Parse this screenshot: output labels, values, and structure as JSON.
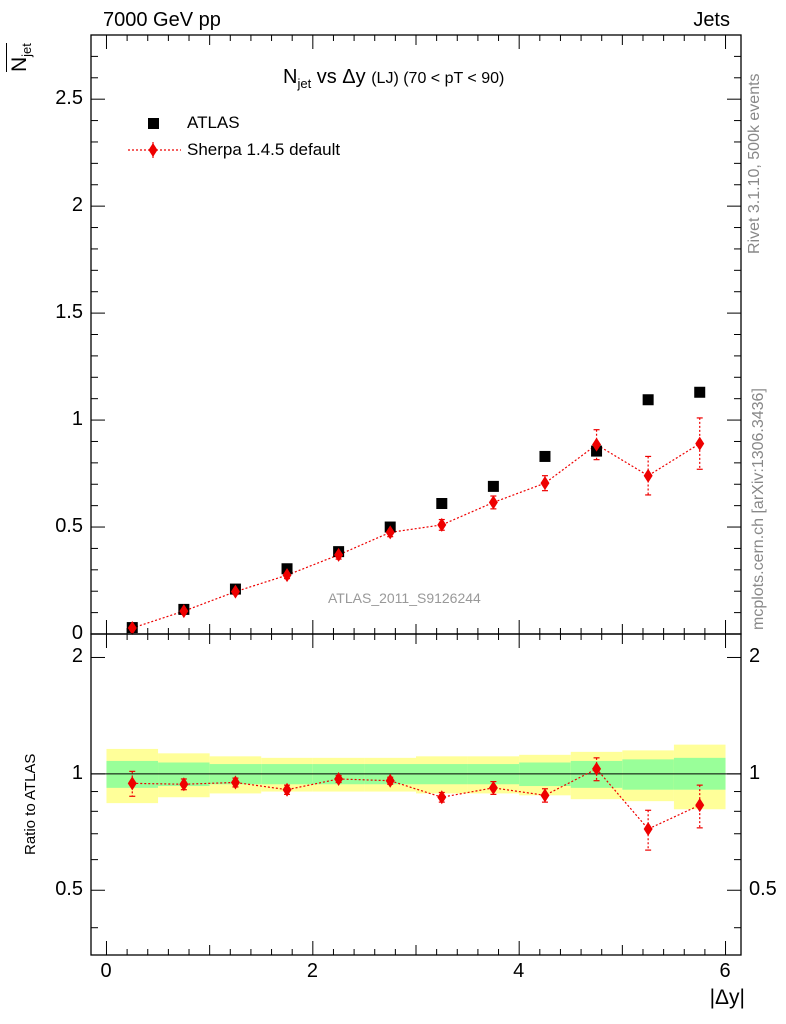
{
  "header": {
    "left": "7000 GeV pp",
    "right": "Jets"
  },
  "side_texts": {
    "rivet": "Rivet 3.1.10,  500k events",
    "mcplots": "mcplots.cern.ch [arXiv:1306.3436]"
  },
  "ylabel_main": {
    "numer": "N",
    "numer_sub": "jet",
    "denom": "N",
    "denom_sub": "jet"
  },
  "title": {
    "prefix": "N",
    "sub": "jet",
    "middle": " vs Δy ",
    "small": "(LJ) (70 < pT <  90)"
  },
  "legend": [
    {
      "label": "ATLAS",
      "marker": "square",
      "color": "#000000"
    },
    {
      "label": "Sherpa 1.4.5 default",
      "marker": "diamond",
      "color": "#ee0000"
    }
  ],
  "watermark": "ATLAS_2011_S9126244",
  "xlabel": "|Δy|",
  "ratio_ylabel": "Ratio to ATLAS",
  "colors": {
    "data": "#000000",
    "mc": "#ee0000",
    "band_inner": "#99ff99",
    "band_outer": "#ffff99"
  },
  "chart_data": [
    {
      "type": "scatter",
      "panel": "main",
      "xlim": [
        -0.15,
        6.15
      ],
      "ylim": [
        0,
        2.8
      ],
      "yticks": [
        0,
        0.5,
        1,
        1.5,
        2,
        2.5
      ],
      "ytick_labels": [
        "0",
        "0.5",
        "1",
        "1.5",
        "2",
        "2.5"
      ],
      "series": [
        {
          "name": "ATLAS",
          "x": [
            0.25,
            0.75,
            1.25,
            1.75,
            2.25,
            2.75,
            3.25,
            3.75,
            4.25,
            4.75,
            5.25,
            5.75
          ],
          "y": [
            0.03,
            0.115,
            0.21,
            0.305,
            0.385,
            0.5,
            0.61,
            0.69,
            0.83,
            0.855,
            1.095,
            1.13
          ]
        },
        {
          "name": "Sherpa 1.4.5 default",
          "x": [
            0.25,
            0.75,
            1.25,
            1.75,
            2.25,
            2.75,
            3.25,
            3.75,
            4.25,
            4.75,
            5.25,
            5.75
          ],
          "y": [
            0.028,
            0.107,
            0.198,
            0.275,
            0.37,
            0.475,
            0.51,
            0.615,
            0.705,
            0.885,
            0.74,
            0.89
          ],
          "yerr": [
            0.006,
            0.01,
            0.012,
            0.016,
            0.02,
            0.02,
            0.025,
            0.03,
            0.035,
            0.07,
            0.09,
            0.12
          ]
        }
      ]
    },
    {
      "type": "scatter",
      "panel": "ratio",
      "ylabel": "Ratio to ATLAS",
      "xlabel": "|Δy|",
      "xlim": [
        -0.15,
        6.15
      ],
      "ylim": [
        0.34,
        2.3
      ],
      "xticks": [
        0,
        2,
        4,
        6
      ],
      "xtick_labels": [
        "0",
        "2",
        "4",
        "6"
      ],
      "yticks": [
        0.5,
        1,
        2
      ],
      "ytick_labels": [
        "0.5",
        "1",
        "2"
      ],
      "bins": [
        [
          0,
          0.5
        ],
        [
          0.5,
          1
        ],
        [
          1,
          1.5
        ],
        [
          1.5,
          2
        ],
        [
          2,
          2.5
        ],
        [
          2.5,
          3
        ],
        [
          3,
          3.5
        ],
        [
          3.5,
          4
        ],
        [
          4,
          4.5
        ],
        [
          4.5,
          5
        ],
        [
          5,
          5.5
        ],
        [
          5.5,
          6
        ]
      ],
      "band_inner": [
        [
          0.92,
          1.08
        ],
        [
          0.93,
          1.07
        ],
        [
          0.94,
          1.06
        ],
        [
          0.94,
          1.06
        ],
        [
          0.94,
          1.06
        ],
        [
          0.94,
          1.06
        ],
        [
          0.94,
          1.06
        ],
        [
          0.94,
          1.06
        ],
        [
          0.93,
          1.07
        ],
        [
          0.92,
          1.08
        ],
        [
          0.91,
          1.09
        ],
        [
          0.91,
          1.1
        ]
      ],
      "band_outer": [
        [
          0.84,
          1.16
        ],
        [
          0.87,
          1.13
        ],
        [
          0.89,
          1.11
        ],
        [
          0.9,
          1.1
        ],
        [
          0.9,
          1.1
        ],
        [
          0.9,
          1.1
        ],
        [
          0.89,
          1.11
        ],
        [
          0.89,
          1.11
        ],
        [
          0.88,
          1.12
        ],
        [
          0.86,
          1.14
        ],
        [
          0.85,
          1.15
        ],
        [
          0.81,
          1.19
        ]
      ],
      "series": [
        {
          "name": "Sherpa 1.4.5 default",
          "x": [
            0.25,
            0.75,
            1.25,
            1.75,
            2.25,
            2.75,
            3.25,
            3.75,
            4.25,
            4.75,
            5.25,
            5.75
          ],
          "y": [
            0.945,
            0.94,
            0.95,
            0.91,
            0.97,
            0.96,
            0.87,
            0.92,
            0.88,
            1.03,
            0.72,
            0.83
          ],
          "yerr": [
            0.07,
            0.03,
            0.025,
            0.025,
            0.02,
            0.02,
            0.025,
            0.035,
            0.035,
            0.07,
            0.085,
            0.105
          ]
        }
      ]
    }
  ]
}
